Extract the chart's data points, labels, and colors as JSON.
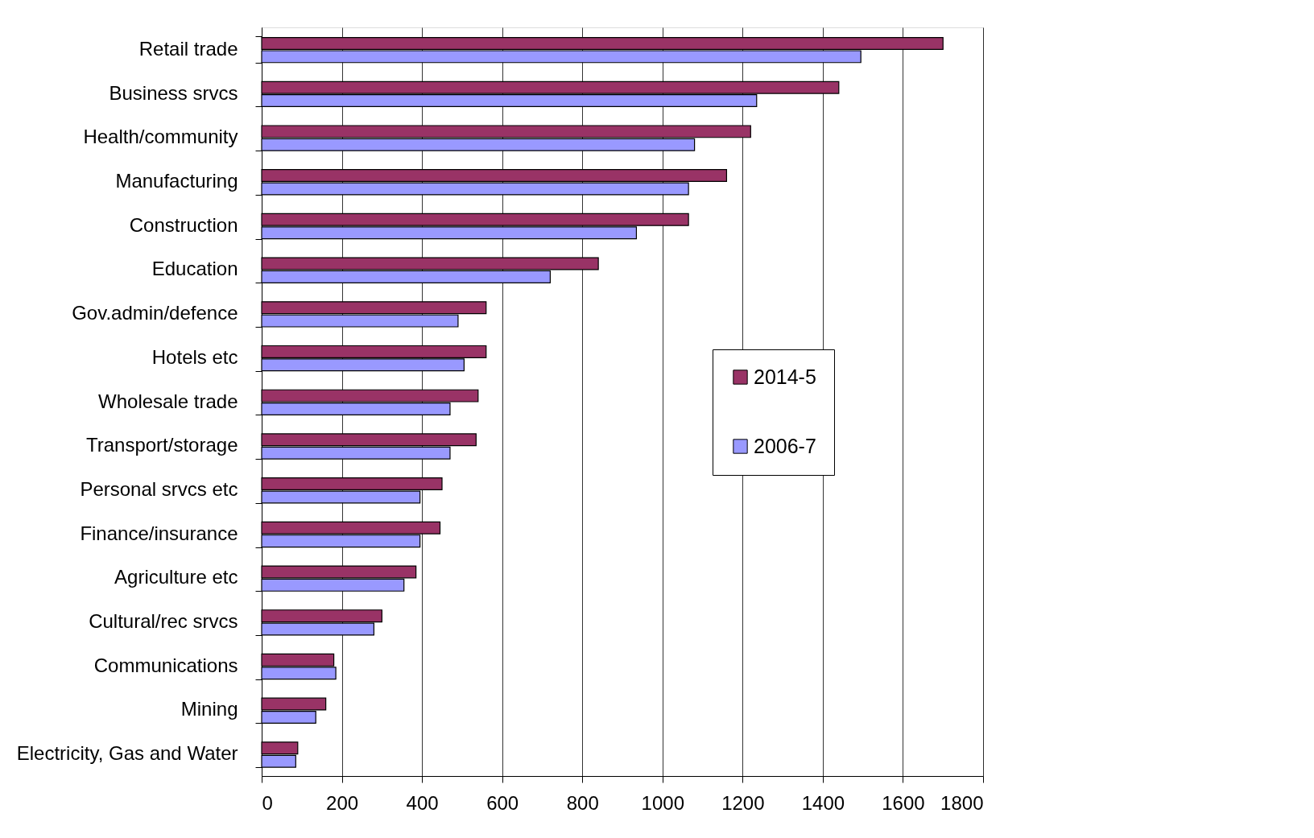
{
  "chart_data": {
    "type": "bar",
    "orientation": "horizontal",
    "categories": [
      "Retail trade",
      "Business srvcs",
      "Health/community",
      "Manufacturing",
      "Construction",
      "Education",
      "Gov.admin/defence",
      "Hotels etc",
      "Wholesale trade",
      "Transport/storage",
      "Personal srvcs etc",
      "Finance/insurance",
      "Agriculture etc",
      "Cultural/rec srvcs",
      "Communications",
      "Mining",
      "Electricity, Gas and Water"
    ],
    "series": [
      {
        "name": "2014-5",
        "color": "#993366",
        "values": [
          1700,
          1440,
          1220,
          1160,
          1065,
          840,
          560,
          560,
          540,
          535,
          450,
          445,
          385,
          300,
          180,
          160,
          90
        ]
      },
      {
        "name": "2006-7",
        "color": "#9999ff",
        "values": [
          1495,
          1235,
          1080,
          1065,
          935,
          720,
          490,
          505,
          470,
          470,
          395,
          395,
          355,
          280,
          185,
          135,
          85
        ]
      }
    ],
    "xlim": [
      0,
      1800
    ],
    "xticks": [
      0,
      200,
      400,
      600,
      800,
      1000,
      1200,
      1400,
      1600,
      1800
    ],
    "grid": "x",
    "legend": "right"
  }
}
